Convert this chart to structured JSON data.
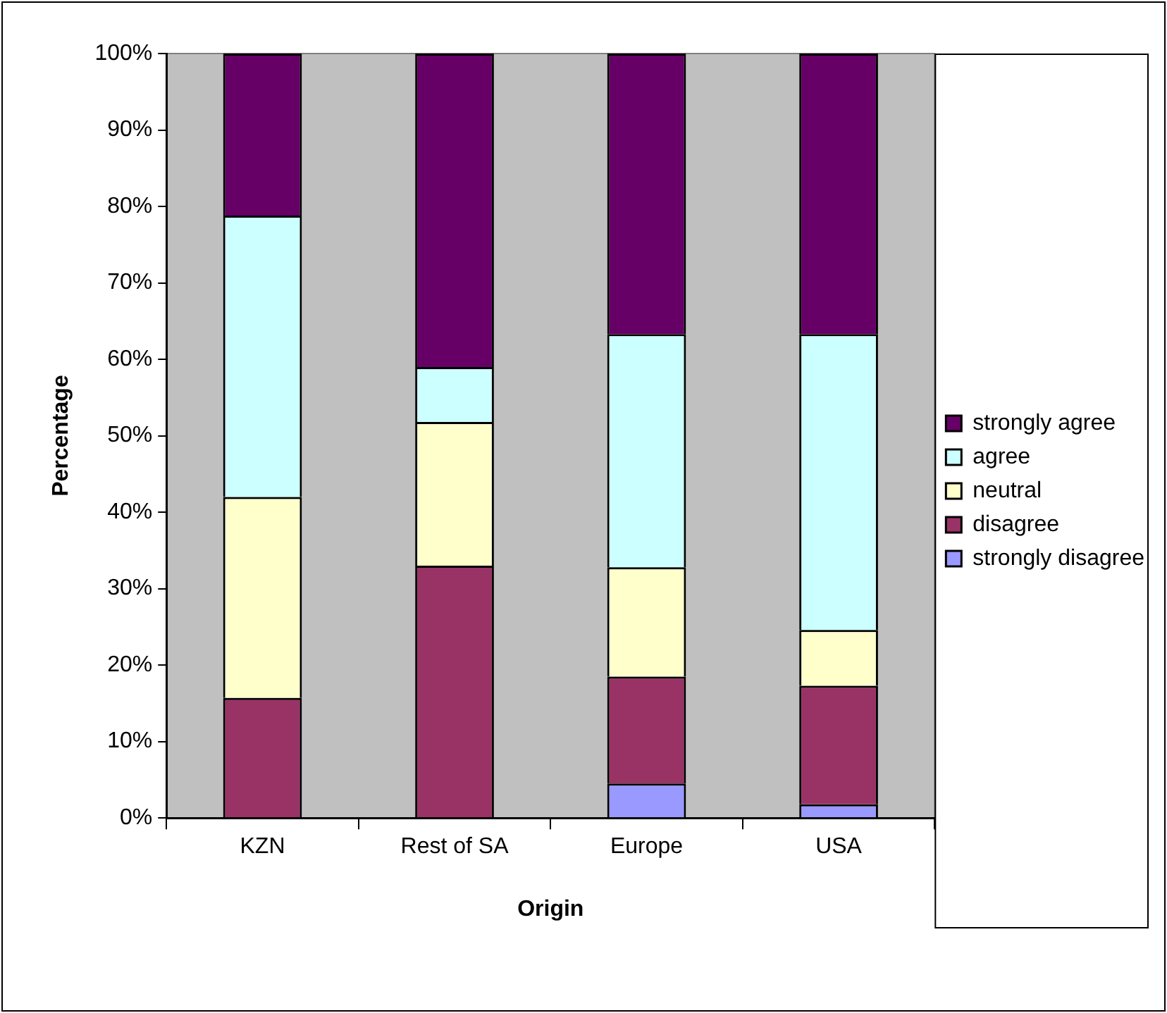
{
  "chart_data": {
    "type": "bar",
    "stacked": true,
    "xlabel": "Origin",
    "ylabel": "Percentage",
    "categories": [
      "KZN",
      "Rest of SA",
      "Europe",
      "USA"
    ],
    "series": [
      {
        "name": "strongly disagree",
        "color": "#9999ff",
        "values": [
          0,
          0,
          4.5,
          1.8
        ]
      },
      {
        "name": "disagree",
        "color": "#993366",
        "values": [
          15.7,
          33,
          14,
          15.5
        ]
      },
      {
        "name": "neutral",
        "color": "#ffffcc",
        "values": [
          26.3,
          18.8,
          14.3,
          7.3
        ]
      },
      {
        "name": "agree",
        "color": "#ccffff",
        "values": [
          36.8,
          7.2,
          30.5,
          38.7
        ]
      },
      {
        "name": "strongly agree",
        "color": "#660066",
        "values": [
          21.2,
          41,
          36.7,
          36.7
        ]
      }
    ],
    "ylim": [
      0,
      100
    ],
    "yticks": [
      {
        "value": 0,
        "label": "0%"
      },
      {
        "value": 10,
        "label": "10%"
      },
      {
        "value": 20,
        "label": "20%"
      },
      {
        "value": 30,
        "label": "30%"
      },
      {
        "value": 40,
        "label": "40%"
      },
      {
        "value": 50,
        "label": "50%"
      },
      {
        "value": 60,
        "label": "60%"
      },
      {
        "value": 70,
        "label": "70%"
      },
      {
        "value": 80,
        "label": "80%"
      },
      {
        "value": 90,
        "label": "90%"
      },
      {
        "value": 100,
        "label": "100%"
      }
    ],
    "grid": false,
    "legend": "right"
  }
}
